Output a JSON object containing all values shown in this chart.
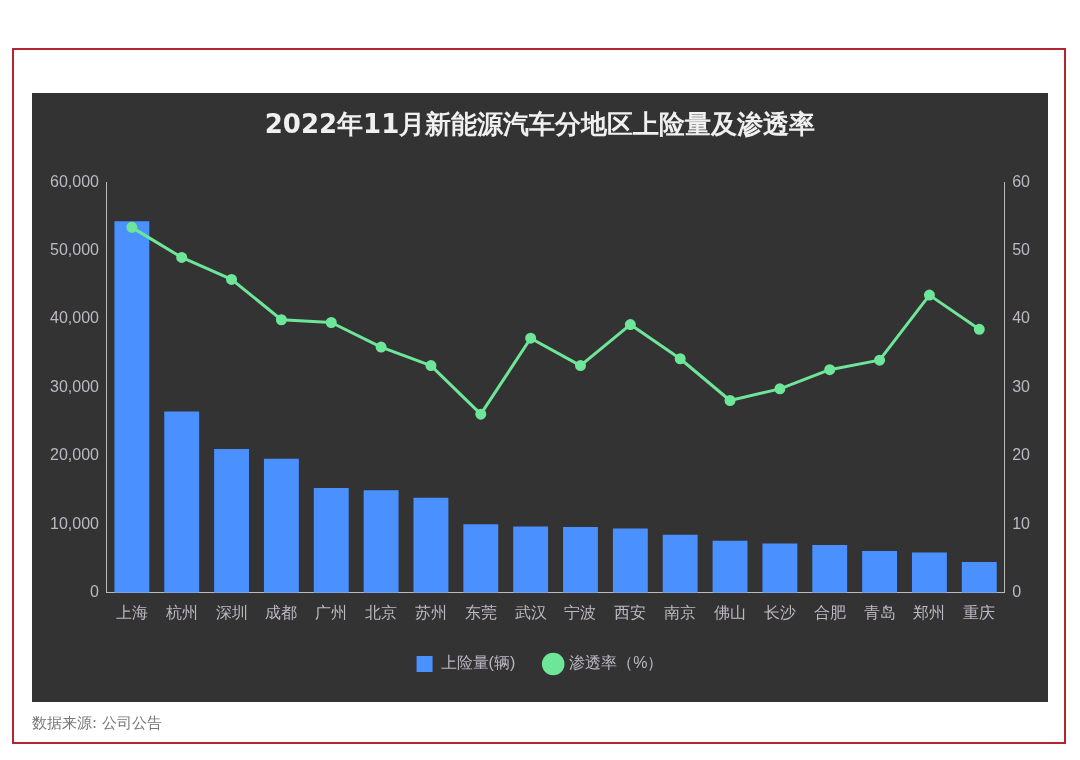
{
  "chart_data": {
    "type": "bar",
    "title": "2022年11月新能源汽车分地区上险量及渗透率",
    "categories": [
      "上海",
      "杭州",
      "深圳",
      "成都",
      "广州",
      "北京",
      "苏州",
      "东莞",
      "武汉",
      "宁波",
      "西安",
      "南京",
      "佛山",
      "长沙",
      "合肥",
      "青岛",
      "郑州",
      "重庆"
    ],
    "series": [
      {
        "name": "上险量(辆)",
        "color": "#4a90ff",
        "values": [
          54300,
          26500,
          21000,
          19600,
          15300,
          15000,
          13900,
          10000,
          9700,
          9600,
          9400,
          8500,
          7600,
          7200,
          7000,
          6100,
          5900,
          4500
        ]
      },
      {
        "name": "渗透率（%）",
        "type": "line",
        "axis": "y2",
        "color": "#6ee69a",
        "values": [
          53.4,
          49.0,
          45.8,
          39.9,
          39.5,
          35.9,
          33.2,
          26.1,
          37.2,
          33.2,
          39.2,
          34.2,
          28.1,
          29.8,
          32.6,
          34.0,
          43.5,
          38.5
        ]
      }
    ],
    "ylim": [
      0,
      60000
    ],
    "yticks": [
      0,
      {
        "value": 10000,
        "label": "10,000"
      },
      {
        "value": 20000,
        "label": "20,000"
      },
      {
        "value": 30000,
        "label": "30,000"
      },
      {
        "value": 40000,
        "label": "40,000"
      },
      {
        "value": 50000,
        "label": "50,000"
      },
      {
        "value": 60000,
        "label": "60,000"
      }
    ],
    "y2lim": [
      0,
      60
    ],
    "y2ticks": [
      0,
      10,
      20,
      30,
      40,
      50,
      60
    ],
    "grid": false,
    "legend": "bottom",
    "marker": "circle",
    "line_style": "solid",
    "annotations": [
      "数据来源: 公司公告"
    ]
  }
}
